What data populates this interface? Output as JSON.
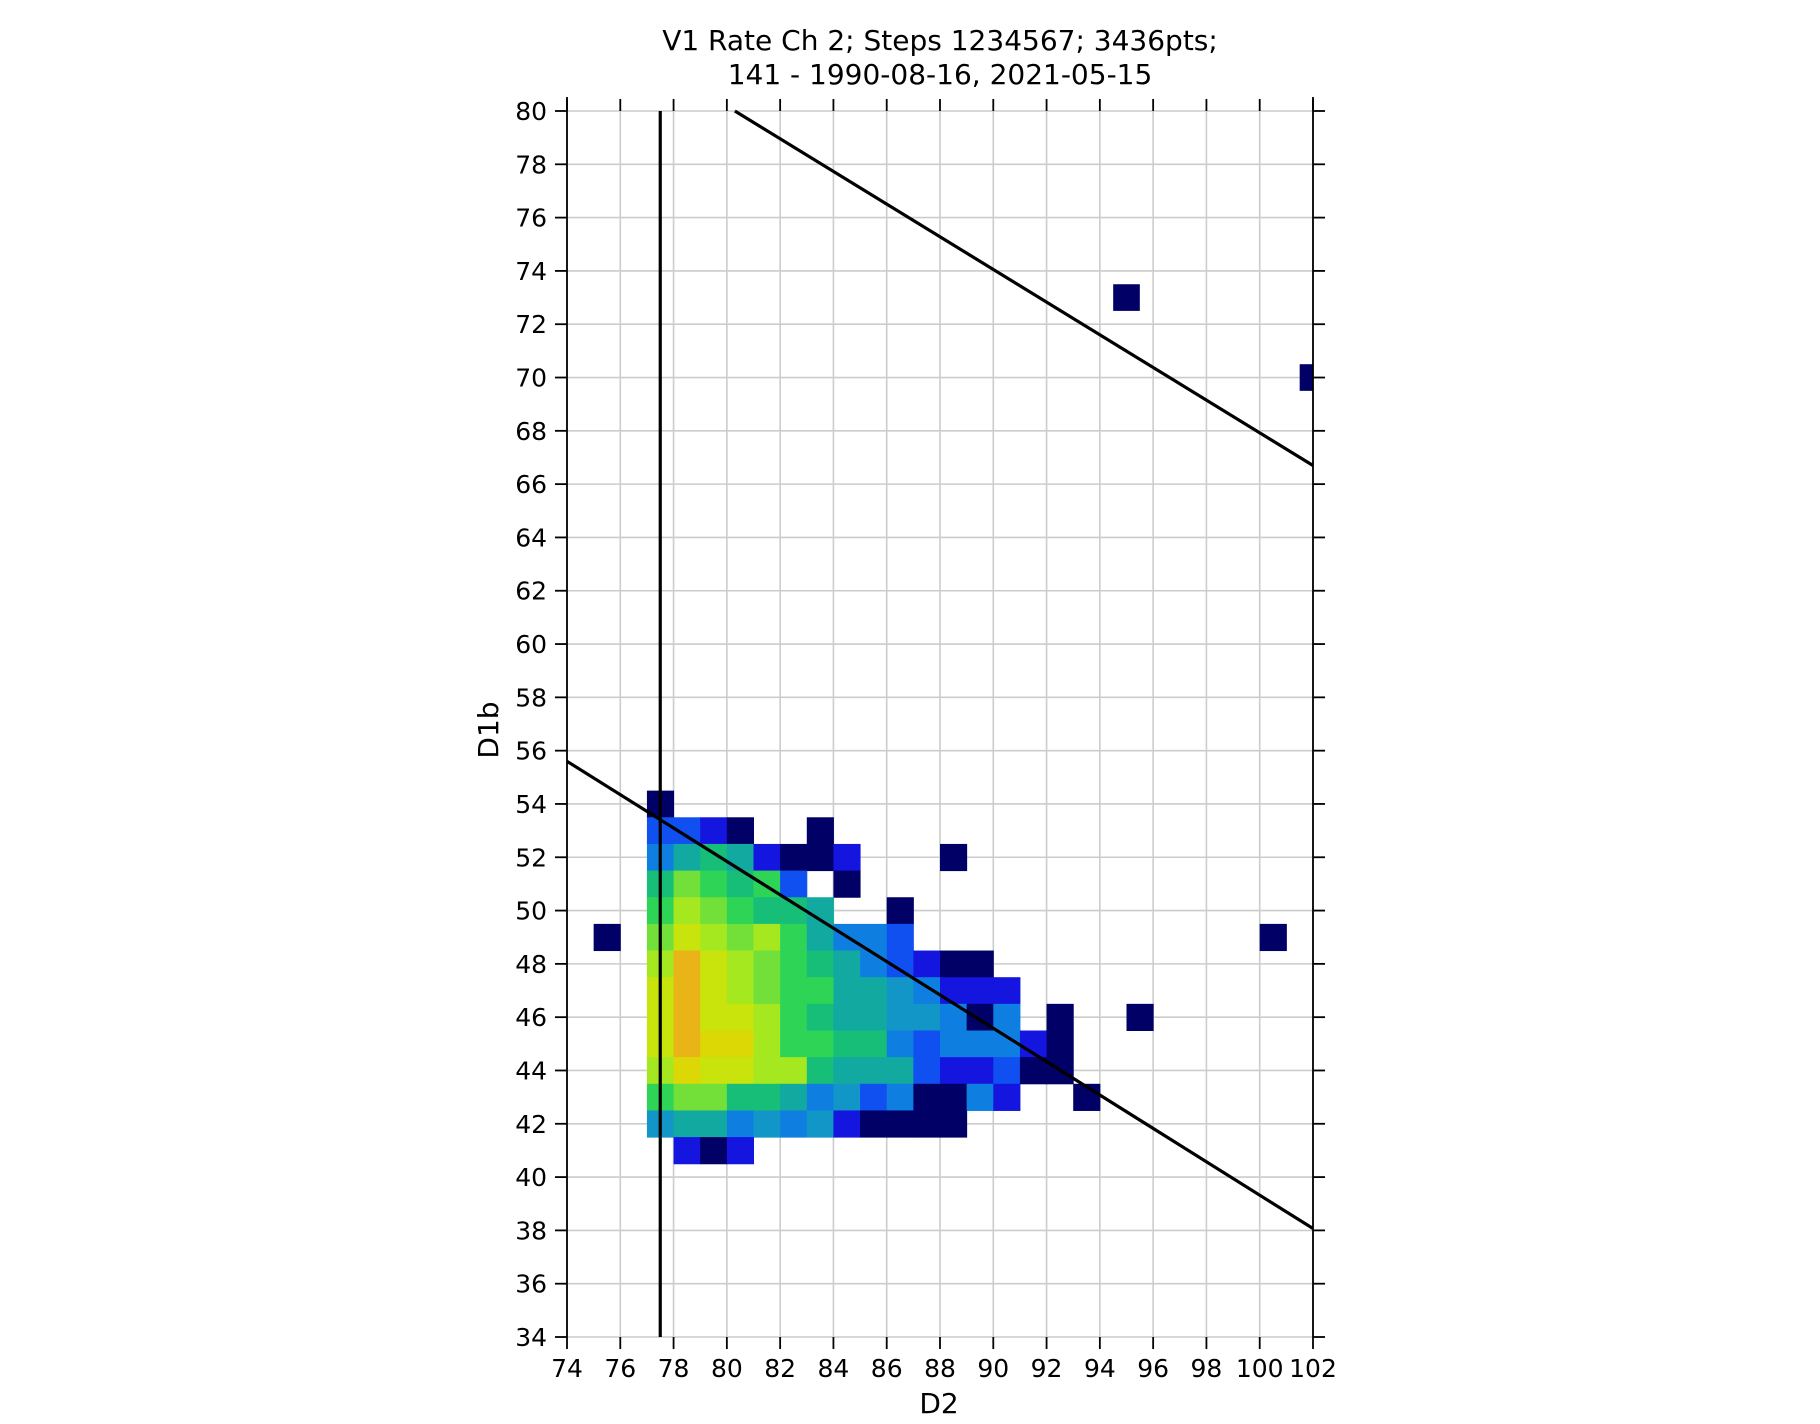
{
  "chart_data": {
    "type": "heatmap",
    "title_lines": [
      "V1 Rate Ch 2; Steps 1234567; 3436pts;",
      "141 - 1990-08-16, 2021-05-15"
    ],
    "xlabel": "D2",
    "ylabel": "D1b",
    "xlim": [
      74,
      102
    ],
    "ylim": [
      34,
      80
    ],
    "xticks": [
      "74",
      "76",
      "78",
      "80",
      "82",
      "84",
      "86",
      "88",
      "90",
      "92",
      "94",
      "96",
      "98",
      "100",
      "102"
    ],
    "yticks": [
      "34",
      "36",
      "38",
      "40",
      "42",
      "44",
      "46",
      "48",
      "50",
      "52",
      "54",
      "56",
      "58",
      "60",
      "62",
      "64",
      "66",
      "68",
      "70",
      "72",
      "74",
      "76",
      "78",
      "80"
    ],
    "grid": true,
    "cell_size": 1,
    "colors": {
      "1": "#000066",
      "2": "#1515e0",
      "3": "#1050f0",
      "4": "#0e7fe0",
      "5": "#1296c8",
      "6": "#12aaa0",
      "7": "#16be78",
      "8": "#2ed456",
      "9": "#72e038",
      "10": "#a6e820",
      "11": "#c8e40c",
      "12": "#dcd806",
      "13": "#e8b418"
    },
    "cells": [
      [
        77.5,
        54,
        1
      ],
      [
        77.5,
        53,
        3
      ],
      [
        78.5,
        53,
        3
      ],
      [
        79.5,
        53,
        2
      ],
      [
        80.5,
        53,
        1
      ],
      [
        83.5,
        53,
        1
      ],
      [
        77.5,
        52,
        4
      ],
      [
        78.5,
        52,
        6
      ],
      [
        79.5,
        52,
        7
      ],
      [
        80.5,
        52,
        6
      ],
      [
        81.5,
        52,
        2
      ],
      [
        82.5,
        52,
        1
      ],
      [
        83.5,
        52,
        1
      ],
      [
        84.5,
        52,
        2
      ],
      [
        88.5,
        52,
        1
      ],
      [
        77.5,
        51,
        7
      ],
      [
        78.5,
        51,
        9
      ],
      [
        79.5,
        51,
        8
      ],
      [
        80.5,
        51,
        7
      ],
      [
        81.5,
        51,
        8
      ],
      [
        82.5,
        51,
        3
      ],
      [
        84.5,
        51,
        1
      ],
      [
        77.5,
        50,
        8
      ],
      [
        78.5,
        50,
        10
      ],
      [
        79.5,
        50,
        9
      ],
      [
        80.5,
        50,
        8
      ],
      [
        81.5,
        50,
        7
      ],
      [
        82.5,
        50,
        7
      ],
      [
        83.5,
        50,
        6
      ],
      [
        86.5,
        50,
        1
      ],
      [
        75.5,
        49,
        1
      ],
      [
        77.5,
        49,
        9
      ],
      [
        78.5,
        49,
        11
      ],
      [
        79.5,
        49,
        10
      ],
      [
        80.5,
        49,
        9
      ],
      [
        81.5,
        49,
        10
      ],
      [
        82.5,
        49,
        8
      ],
      [
        83.5,
        49,
        6
      ],
      [
        84.5,
        49,
        4
      ],
      [
        85.5,
        49,
        4
      ],
      [
        86.5,
        49,
        3
      ],
      [
        100.5,
        49,
        1
      ],
      [
        77.5,
        48,
        10
      ],
      [
        78.5,
        48,
        13
      ],
      [
        79.5,
        48,
        11
      ],
      [
        80.5,
        48,
        10
      ],
      [
        81.5,
        48,
        9
      ],
      [
        82.5,
        48,
        8
      ],
      [
        83.5,
        48,
        7
      ],
      [
        84.5,
        48,
        6
      ],
      [
        85.5,
        48,
        4
      ],
      [
        86.5,
        48,
        3
      ],
      [
        87.5,
        48,
        2
      ],
      [
        88.5,
        48,
        1
      ],
      [
        89.5,
        48,
        1
      ],
      [
        77.5,
        47,
        11
      ],
      [
        78.5,
        47,
        13
      ],
      [
        79.5,
        47,
        11
      ],
      [
        80.5,
        47,
        10
      ],
      [
        81.5,
        47,
        9
      ],
      [
        82.5,
        47,
        8
      ],
      [
        83.5,
        47,
        8
      ],
      [
        84.5,
        47,
        6
      ],
      [
        85.5,
        47,
        6
      ],
      [
        86.5,
        47,
        5
      ],
      [
        87.5,
        47,
        4
      ],
      [
        88.5,
        47,
        2
      ],
      [
        89.5,
        47,
        2
      ],
      [
        90.5,
        47,
        2
      ],
      [
        77.5,
        46,
        11
      ],
      [
        78.5,
        46,
        13
      ],
      [
        79.5,
        46,
        11
      ],
      [
        80.5,
        46,
        11
      ],
      [
        81.5,
        46,
        10
      ],
      [
        82.5,
        46,
        8
      ],
      [
        83.5,
        46,
        7
      ],
      [
        84.5,
        46,
        6
      ],
      [
        85.5,
        46,
        6
      ],
      [
        86.5,
        46,
        5
      ],
      [
        87.5,
        46,
        5
      ],
      [
        88.5,
        46,
        4
      ],
      [
        89.5,
        46,
        1
      ],
      [
        90.5,
        46,
        4
      ],
      [
        92.5,
        46,
        1
      ],
      [
        95.5,
        46,
        1
      ],
      [
        77.5,
        45,
        11
      ],
      [
        78.5,
        45,
        13
      ],
      [
        79.5,
        45,
        12
      ],
      [
        80.5,
        45,
        12
      ],
      [
        81.5,
        45,
        10
      ],
      [
        82.5,
        45,
        8
      ],
      [
        83.5,
        45,
        8
      ],
      [
        84.5,
        45,
        7
      ],
      [
        85.5,
        45,
        7
      ],
      [
        86.5,
        45,
        4
      ],
      [
        87.5,
        45,
        3
      ],
      [
        88.5,
        45,
        4
      ],
      [
        89.5,
        45,
        4
      ],
      [
        90.5,
        45,
        4
      ],
      [
        91.5,
        45,
        2
      ],
      [
        92.5,
        45,
        1
      ],
      [
        77.5,
        44,
        10
      ],
      [
        78.5,
        44,
        12
      ],
      [
        79.5,
        44,
        11
      ],
      [
        80.5,
        44,
        11
      ],
      [
        81.5,
        44,
        10
      ],
      [
        82.5,
        44,
        10
      ],
      [
        83.5,
        44,
        7
      ],
      [
        84.5,
        44,
        6
      ],
      [
        85.5,
        44,
        6
      ],
      [
        86.5,
        44,
        6
      ],
      [
        87.5,
        44,
        3
      ],
      [
        88.5,
        44,
        2
      ],
      [
        89.5,
        44,
        2
      ],
      [
        90.5,
        44,
        3
      ],
      [
        91.5,
        44,
        1
      ],
      [
        92.5,
        44,
        1
      ],
      [
        77.5,
        43,
        8
      ],
      [
        78.5,
        43,
        9
      ],
      [
        79.5,
        43,
        9
      ],
      [
        80.5,
        43,
        7
      ],
      [
        81.5,
        43,
        7
      ],
      [
        82.5,
        43,
        6
      ],
      [
        83.5,
        43,
        4
      ],
      [
        84.5,
        43,
        5
      ],
      [
        85.5,
        43,
        3
      ],
      [
        86.5,
        43,
        4
      ],
      [
        87.5,
        43,
        1
      ],
      [
        88.5,
        43,
        1
      ],
      [
        89.5,
        43,
        4
      ],
      [
        90.5,
        43,
        2
      ],
      [
        93.5,
        43,
        1
      ],
      [
        77.5,
        42,
        5
      ],
      [
        78.5,
        42,
        6
      ],
      [
        79.5,
        42,
        6
      ],
      [
        80.5,
        42,
        4
      ],
      [
        81.5,
        42,
        5
      ],
      [
        82.5,
        42,
        4
      ],
      [
        83.5,
        42,
        5
      ],
      [
        84.5,
        42,
        2
      ],
      [
        85.5,
        42,
        1
      ],
      [
        86.5,
        42,
        1
      ],
      [
        87.5,
        42,
        1
      ],
      [
        88.5,
        42,
        1
      ],
      [
        78.5,
        41,
        2
      ],
      [
        79.5,
        41,
        1
      ],
      [
        80.5,
        41,
        2
      ]
    ],
    "extra_cells": [
      [
        95,
        73,
        1
      ],
      [
        102,
        70,
        1
      ]
    ],
    "lines": [
      {
        "x": [
          77.5,
          77.5
        ],
        "y": [
          34,
          80
        ]
      },
      {
        "x": [
          74,
          102
        ],
        "y": [
          55.6,
          38.07
        ]
      },
      {
        "x": [
          80.3,
          102
        ],
        "y": [
          80,
          66.7
        ]
      }
    ]
  }
}
